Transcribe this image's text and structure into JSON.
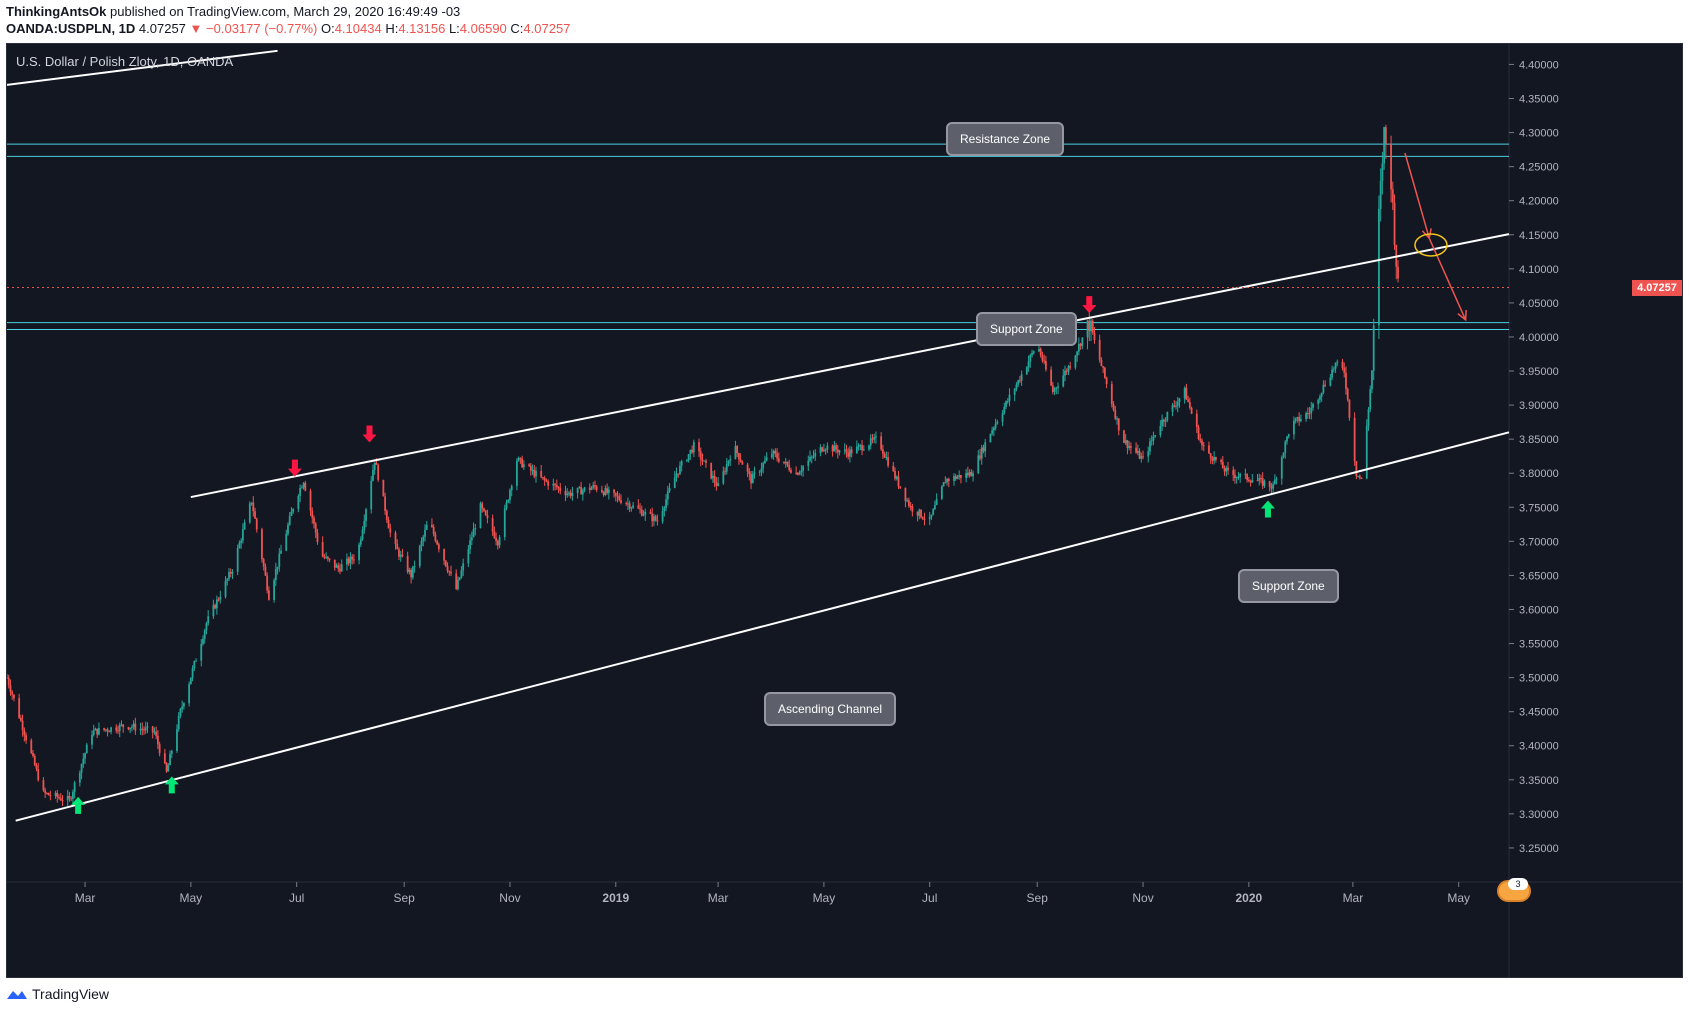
{
  "header": {
    "author": "ThinkingAntsOk",
    "published": "published on TradingView.com, March 29, 2020 16:49:49 -03",
    "symbol": "OANDA:USDPLN, 1D",
    "last": "4.07257",
    "change": "▼ −0.03177 (−0.77%)",
    "o_label": "O:",
    "o": "4.10434",
    "h_label": "H:",
    "h": "4.13156",
    "l_label": "L:",
    "l": "4.06590",
    "c_label": "C:",
    "c": "4.07257"
  },
  "instrument_title": "U.S. Dollar / Polish Zloty, 1D, OANDA",
  "annotations": {
    "resistance": "Resistance Zone",
    "support_top": "Support Zone",
    "support_bottom": "Support Zone",
    "channel": "Ascending Channel"
  },
  "current_price_tag": "4.07257",
  "event_badge_count": "3",
  "footer": {
    "brand": "TradingView"
  },
  "colors": {
    "background": "#131722",
    "up": "#26a69a",
    "down": "#ef5350",
    "zone_line": "#4dd0e1",
    "trend_line": "#ffffff",
    "signal_up": "#00e676",
    "signal_down": "#ff1744",
    "target_ellipse": "#f5c518"
  },
  "chart_data": {
    "type": "candlestick",
    "title": "U.S. Dollar / Polish Zloty, 1D, OANDA",
    "y_axis": {
      "side": "right",
      "min": 3.2,
      "max": 4.43,
      "ticks": [
        "4.40000",
        "4.35000",
        "4.30000",
        "4.25000",
        "4.20000",
        "4.15000",
        "4.10000",
        "4.05000",
        "4.00000",
        "3.95000",
        "3.90000",
        "3.85000",
        "3.80000",
        "3.75000",
        "3.70000",
        "3.65000",
        "3.60000",
        "3.55000",
        "3.50000",
        "3.45000",
        "3.40000",
        "3.35000",
        "3.30000",
        "3.25000"
      ]
    },
    "x_axis": {
      "start": "2018-01-15",
      "end": "2020-05-30",
      "ticks": [
        {
          "date": "2018-03-01",
          "label": "Mar",
          "bold": false
        },
        {
          "date": "2018-05-01",
          "label": "May",
          "bold": false
        },
        {
          "date": "2018-07-01",
          "label": "Jul",
          "bold": false
        },
        {
          "date": "2018-09-01",
          "label": "Sep",
          "bold": false
        },
        {
          "date": "2018-11-01",
          "label": "Nov",
          "bold": false
        },
        {
          "date": "2019-01-01",
          "label": "2019",
          "bold": true
        },
        {
          "date": "2019-03-01",
          "label": "Mar",
          "bold": false
        },
        {
          "date": "2019-05-01",
          "label": "May",
          "bold": false
        },
        {
          "date": "2019-07-01",
          "label": "Jul",
          "bold": false
        },
        {
          "date": "2019-09-01",
          "label": "Sep",
          "bold": false
        },
        {
          "date": "2019-11-01",
          "label": "Nov",
          "bold": false
        },
        {
          "date": "2020-01-01",
          "label": "2020",
          "bold": true
        },
        {
          "date": "2020-03-01",
          "label": "Mar",
          "bold": false
        },
        {
          "date": "2020-05-01",
          "label": "May",
          "bold": false
        }
      ]
    },
    "price_path": [
      {
        "date": "2018-01-15",
        "close": 3.5
      },
      {
        "date": "2018-01-25",
        "close": 3.42
      },
      {
        "date": "2018-02-05",
        "close": 3.33
      },
      {
        "date": "2018-02-20",
        "close": 3.32
      },
      {
        "date": "2018-03-05",
        "close": 3.42
      },
      {
        "date": "2018-03-25",
        "close": 3.43
      },
      {
        "date": "2018-04-10",
        "close": 3.42
      },
      {
        "date": "2018-04-17",
        "close": 3.36
      },
      {
        "date": "2018-04-25",
        "close": 3.45
      },
      {
        "date": "2018-05-10",
        "close": 3.58
      },
      {
        "date": "2018-05-25",
        "close": 3.66
      },
      {
        "date": "2018-06-05",
        "close": 3.76
      },
      {
        "date": "2018-06-15",
        "close": 3.62
      },
      {
        "date": "2018-06-30",
        "close": 3.76
      },
      {
        "date": "2018-07-05",
        "close": 3.79
      },
      {
        "date": "2018-07-15",
        "close": 3.68
      },
      {
        "date": "2018-07-25",
        "close": 3.66
      },
      {
        "date": "2018-08-05",
        "close": 3.68
      },
      {
        "date": "2018-08-15",
        "close": 3.82
      },
      {
        "date": "2018-08-25",
        "close": 3.7
      },
      {
        "date": "2018-09-05",
        "close": 3.65
      },
      {
        "date": "2018-09-15",
        "close": 3.73
      },
      {
        "date": "2018-10-01",
        "close": 3.63
      },
      {
        "date": "2018-10-15",
        "close": 3.75
      },
      {
        "date": "2018-10-25",
        "close": 3.7
      },
      {
        "date": "2018-11-05",
        "close": 3.82
      },
      {
        "date": "2018-11-20",
        "close": 3.79
      },
      {
        "date": "2018-12-05",
        "close": 3.77
      },
      {
        "date": "2018-12-20",
        "close": 3.78
      },
      {
        "date": "2019-01-05",
        "close": 3.76
      },
      {
        "date": "2019-01-25",
        "close": 3.73
      },
      {
        "date": "2019-02-05",
        "close": 3.8
      },
      {
        "date": "2019-02-15",
        "close": 3.84
      },
      {
        "date": "2019-03-01",
        "close": 3.78
      },
      {
        "date": "2019-03-10",
        "close": 3.84
      },
      {
        "date": "2019-03-20",
        "close": 3.79
      },
      {
        "date": "2019-04-01",
        "close": 3.83
      },
      {
        "date": "2019-04-15",
        "close": 3.8
      },
      {
        "date": "2019-05-01",
        "close": 3.84
      },
      {
        "date": "2019-05-15",
        "close": 3.83
      },
      {
        "date": "2019-06-01",
        "close": 3.85
      },
      {
        "date": "2019-06-10",
        "close": 3.8
      },
      {
        "date": "2019-06-20",
        "close": 3.75
      },
      {
        "date": "2019-07-01",
        "close": 3.73
      },
      {
        "date": "2019-07-10",
        "close": 3.79
      },
      {
        "date": "2019-07-25",
        "close": 3.8
      },
      {
        "date": "2019-08-05",
        "close": 3.86
      },
      {
        "date": "2019-08-20",
        "close": 3.93
      },
      {
        "date": "2019-09-01",
        "close": 3.99
      },
      {
        "date": "2019-09-10",
        "close": 3.92
      },
      {
        "date": "2019-09-20",
        "close": 3.96
      },
      {
        "date": "2019-10-01",
        "close": 4.02
      },
      {
        "date": "2019-10-10",
        "close": 3.94
      },
      {
        "date": "2019-10-20",
        "close": 3.85
      },
      {
        "date": "2019-11-01",
        "close": 3.82
      },
      {
        "date": "2019-11-10",
        "close": 3.87
      },
      {
        "date": "2019-11-25",
        "close": 3.92
      },
      {
        "date": "2019-12-05",
        "close": 3.84
      },
      {
        "date": "2019-12-20",
        "close": 3.8
      },
      {
        "date": "2020-01-05",
        "close": 3.79
      },
      {
        "date": "2020-01-15",
        "close": 3.78
      },
      {
        "date": "2020-01-25",
        "close": 3.87
      },
      {
        "date": "2020-02-05",
        "close": 3.89
      },
      {
        "date": "2020-02-20",
        "close": 3.96
      },
      {
        "date": "2020-02-25",
        "close": 3.95
      },
      {
        "date": "2020-03-03",
        "close": 3.8
      },
      {
        "date": "2020-03-06",
        "close": 3.79
      },
      {
        "date": "2020-03-12",
        "close": 3.95
      },
      {
        "date": "2020-03-16",
        "close": 4.18
      },
      {
        "date": "2020-03-19",
        "close": 4.3
      },
      {
        "date": "2020-03-23",
        "close": 4.23
      },
      {
        "date": "2020-03-26",
        "close": 4.11
      },
      {
        "date": "2020-03-27",
        "close": 4.07257
      }
    ],
    "zones": [
      {
        "name": "Resistance Zone",
        "from": 4.265,
        "to": 4.283
      },
      {
        "name": "Support Zone",
        "from": 4.011,
        "to": 4.021
      }
    ],
    "trend_lines": [
      {
        "name": "channel-upper",
        "from": {
          "date": "2018-05-01",
          "price": 3.765
        },
        "to": {
          "date": "2020-05-30",
          "price": 4.151
        }
      },
      {
        "name": "channel-lower",
        "from": {
          "date": "2018-01-20",
          "price": 3.29
        },
        "to": {
          "date": "2020-05-30",
          "price": 3.86
        }
      },
      {
        "name": "outer-upper",
        "from": {
          "date": "2018-01-15",
          "price": 4.37
        },
        "to": {
          "date": "2018-06-20",
          "price": 4.42
        }
      }
    ],
    "signals": [
      {
        "type": "up",
        "date": "2018-02-25",
        "price": 3.325
      },
      {
        "type": "up",
        "date": "2018-04-20",
        "price": 3.355
      },
      {
        "type": "down",
        "date": "2018-06-30",
        "price": 3.795
      },
      {
        "type": "down",
        "date": "2018-08-12",
        "price": 3.845
      },
      {
        "type": "down",
        "date": "2019-10-01",
        "price": 4.035
      },
      {
        "type": "up",
        "date": "2020-01-12",
        "price": 3.76
      }
    ],
    "projection": [
      {
        "date": "2020-03-31",
        "price": 4.27
      },
      {
        "date": "2020-04-14",
        "price": 4.145
      },
      {
        "date": "2020-05-05",
        "price": 4.025
      }
    ],
    "target_ellipse": {
      "date": "2020-04-15",
      "price": 4.135
    },
    "current_price": 4.07257
  }
}
